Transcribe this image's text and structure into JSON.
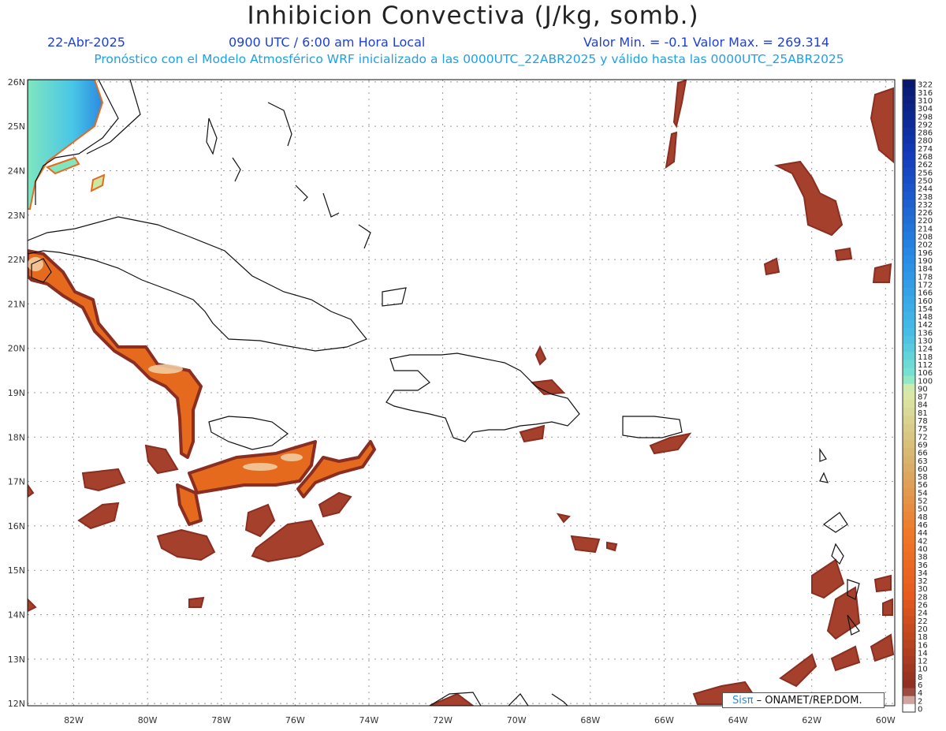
{
  "title": "Inhibicion Convectiva (J/kg, somb.)",
  "header": {
    "date": "22-Abr-2025",
    "time": "0900 UTC / 6:00 am Hora Local",
    "minmax": "Valor Min. = -0.1  Valor Max. = 269.314",
    "model": "Pronóstico con el Modelo Atmosférico WRF inicializado a las 0000UTC_22ABR2025 y válido hasta las  0000UTC_25ABR2025"
  },
  "axes": {
    "lon_labels": [
      "82W",
      "80W",
      "78W",
      "76W",
      "74W",
      "72W",
      "70W",
      "68W",
      "66W",
      "64W",
      "62W",
      "60W"
    ],
    "lat_labels": [
      "26N",
      "25N",
      "24N",
      "23N",
      "22N",
      "21N",
      "20N",
      "19N",
      "18N",
      "17N",
      "16N",
      "15N",
      "14N",
      "13N",
      "12N"
    ],
    "lon_range": [
      -83.25,
      -59.75
    ],
    "lat_range": [
      11.95,
      26.05
    ]
  },
  "colorbar": {
    "labels": [
      "322",
      "316",
      "310",
      "304",
      "298",
      "292",
      "286",
      "280",
      "274",
      "268",
      "262",
      "256",
      "250",
      "244",
      "238",
      "232",
      "226",
      "220",
      "214",
      "208",
      "202",
      "196",
      "190",
      "184",
      "178",
      "172",
      "166",
      "160",
      "154",
      "148",
      "142",
      "136",
      "130",
      "124",
      "118",
      "112",
      "106",
      "100",
      "90",
      "87",
      "84",
      "81",
      "78",
      "75",
      "72",
      "69",
      "66",
      "63",
      "60",
      "58",
      "56",
      "54",
      "52",
      "50",
      "48",
      "46",
      "44",
      "42",
      "40",
      "38",
      "36",
      "34",
      "32",
      "30",
      "28",
      "26",
      "24",
      "22",
      "20",
      "18",
      "16",
      "14",
      "12",
      "10",
      "8",
      "6",
      "4",
      "2",
      "0"
    ]
  },
  "credit": {
    "sis": "Sisπ",
    "text": " – ONAMET/REP.DOM."
  },
  "colors": {
    "low": "#8b2e22",
    "mid": "#e66a1e",
    "high": "#f2d2a8",
    "cold_zone": "#3fb6e6"
  }
}
